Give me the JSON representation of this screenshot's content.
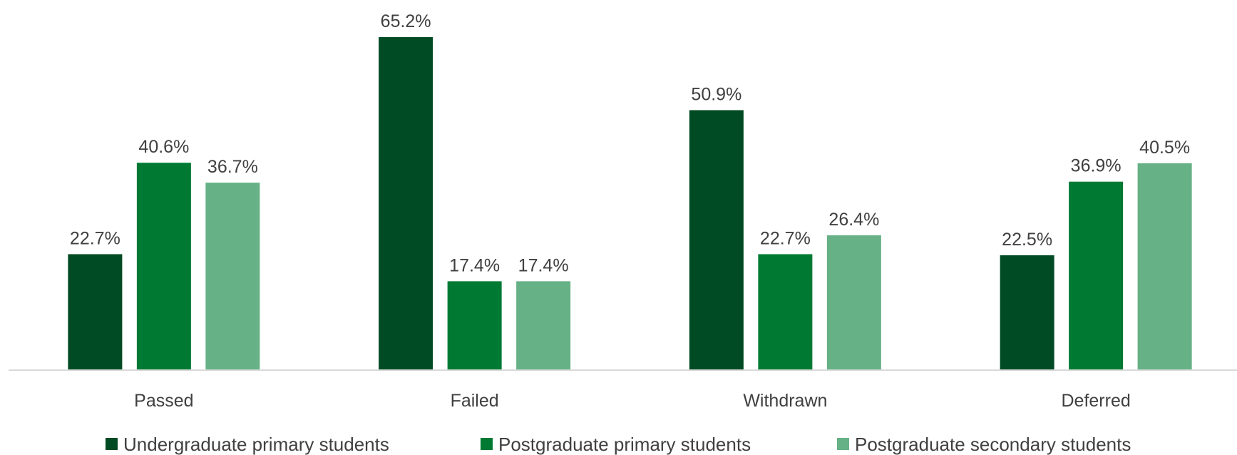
{
  "chart_data": {
    "type": "bar",
    "categories": [
      "Passed",
      "Failed",
      "Withdrawn",
      "Deferred"
    ],
    "series": [
      {
        "name": "Undergraduate primary students",
        "values": [
          22.7,
          65.2,
          50.9,
          22.5
        ],
        "labels": [
          "22.7%",
          "65.2%",
          "50.9%",
          "22.5%"
        ],
        "color": "#004b23"
      },
      {
        "name": "Postgraduate primary students",
        "values": [
          40.6,
          17.4,
          22.7,
          36.9
        ],
        "labels": [
          "40.6%",
          "17.4%",
          "22.7%",
          "36.9%"
        ],
        "color": "#007a33"
      },
      {
        "name": "Postgraduate secondary students",
        "values": [
          36.7,
          17.4,
          26.4,
          40.5
        ],
        "labels": [
          "36.7%",
          "17.4%",
          "26.4%",
          "40.5%"
        ],
        "color": "#66b186"
      }
    ],
    "value_format": "percent",
    "ylim": [
      0,
      70
    ],
    "grid": false,
    "title": "",
    "xlabel": "",
    "ylabel": "",
    "legend_position": "bottom",
    "axis_line_color": "#d9d9d9"
  }
}
